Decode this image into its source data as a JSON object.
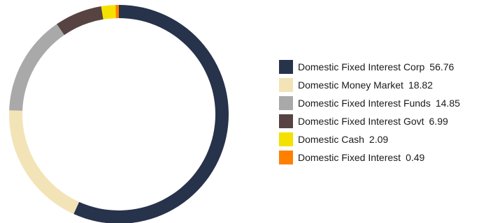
{
  "chart_data": {
    "type": "pie",
    "variant": "donut",
    "title": "",
    "legend_position": "right",
    "categories": [
      "Domestic Fixed Interest Corp",
      "Domestic Money Market",
      "Domestic Fixed Interest Funds",
      "Domestic Fixed Interest Govt",
      "Domestic Cash",
      "Domestic Fixed Interest"
    ],
    "values": [
      56.76,
      18.82,
      14.85,
      6.99,
      2.09,
      0.49
    ],
    "value_labels": [
      "56.76",
      "18.82",
      "14.85",
      "6.99",
      "2.09",
      "0.49"
    ],
    "colors": [
      "#27324b",
      "#f2e4b6",
      "#a9a9a9",
      "#574342",
      "#f5e100",
      "#ff8000"
    ]
  }
}
